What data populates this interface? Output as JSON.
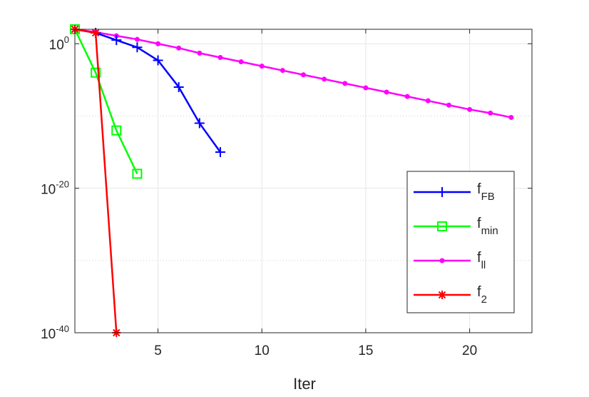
{
  "chart_data": {
    "type": "line",
    "title": "",
    "xlabel": "Iter",
    "ylabel": "",
    "yscale": "log",
    "xlim": [
      1,
      23
    ],
    "ylim": [
      1e-40,
      100.0
    ],
    "grid": true,
    "legend_position": "bottom-right",
    "x_ticks": [
      {
        "value": 5,
        "label": "5"
      },
      {
        "value": 10,
        "label": "10"
      },
      {
        "value": 15,
        "label": "15"
      },
      {
        "value": 20,
        "label": "20"
      }
    ],
    "y_ticks": [
      {
        "exp": 0,
        "base": "10",
        "power": "0"
      },
      {
        "exp": -20,
        "base": "10",
        "power": "-20"
      },
      {
        "exp": -40,
        "base": "10",
        "power": "-40"
      }
    ],
    "series": [
      {
        "name": "f",
        "subscript": "FB",
        "color": "#0000ff",
        "marker": "plus",
        "x": [
          1,
          2,
          3,
          4,
          5,
          6,
          7,
          8
        ],
        "log10_y": [
          2,
          1.5,
          0.5,
          -0.5,
          -2.3,
          -6,
          -11,
          -15
        ]
      },
      {
        "name": "f",
        "subscript": "min",
        "color": "#00ff00",
        "marker": "square",
        "x": [
          1,
          2,
          3,
          4
        ],
        "log10_y": [
          2,
          -4,
          -12,
          -18
        ]
      },
      {
        "name": "f",
        "subscript": "ll",
        "color": "#ff00ff",
        "marker": "dot",
        "x": [
          1,
          2,
          3,
          4,
          5,
          6,
          7,
          8,
          9,
          10,
          11,
          12,
          13,
          14,
          15,
          16,
          17,
          18,
          19,
          20,
          21,
          22
        ],
        "log10_y": [
          2,
          1.6,
          1.1,
          0.6,
          0,
          -0.6,
          -1.3,
          -1.9,
          -2.5,
          -3.1,
          -3.7,
          -4.3,
          -4.9,
          -5.5,
          -6.1,
          -6.7,
          -7.3,
          -7.9,
          -8.5,
          -9.1,
          -9.6,
          -10.2
        ]
      },
      {
        "name": "f",
        "subscript": "2",
        "color": "#ff0000",
        "marker": "asterisk",
        "x": [
          1,
          2,
          3
        ],
        "log10_y": [
          2,
          1.5,
          -40
        ]
      }
    ]
  }
}
